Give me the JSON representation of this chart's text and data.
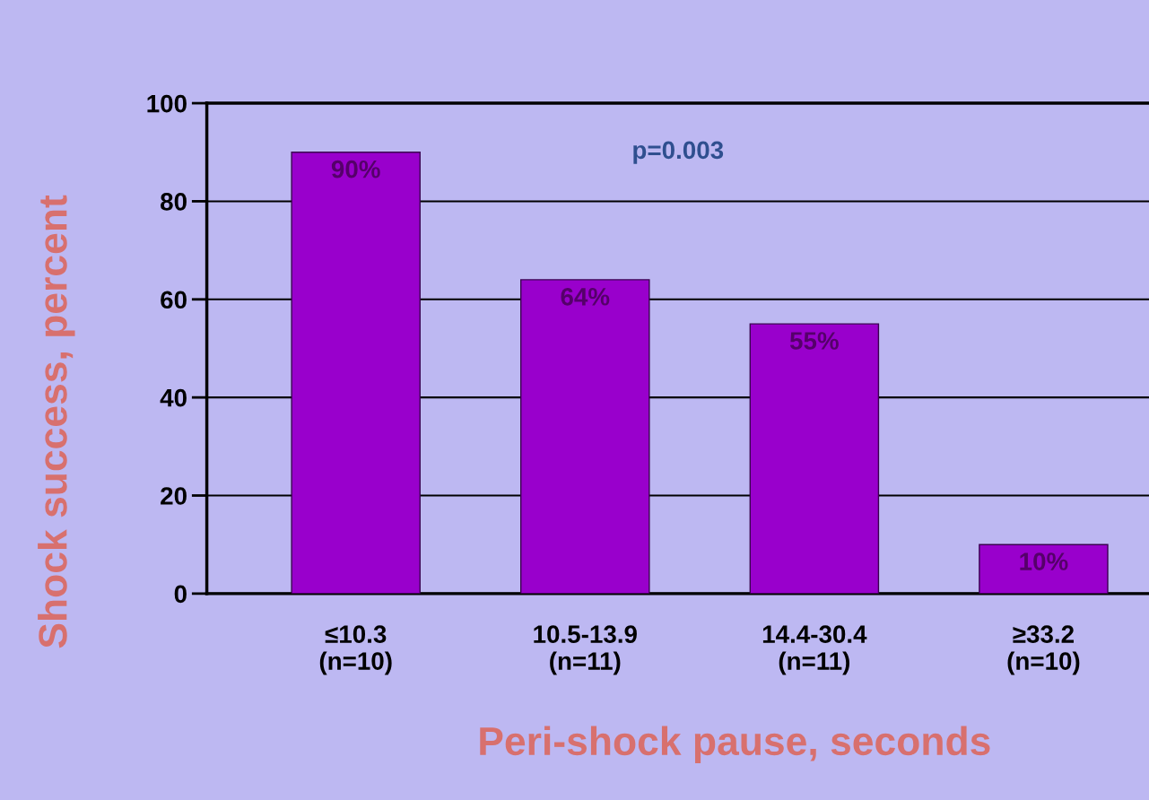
{
  "chart_data": {
    "type": "bar",
    "xlabel": "Peri-shock pause, seconds",
    "ylabel": "Shock success, percent",
    "categories": [
      "≤10.3\n(n=10)",
      "10.5-13.9\n(n=11)",
      "14.4-30.4\n(n=11)",
      "≥33.2\n(n=10)"
    ],
    "values": [
      90,
      64,
      55,
      10
    ],
    "value_labels": [
      "90%",
      "64%",
      "55%",
      "10%"
    ],
    "color": "#9900cc",
    "ylim": [
      0,
      100
    ],
    "yticks": [
      0,
      20,
      40,
      60,
      80,
      100
    ],
    "grid": "y",
    "annotations": [
      "p=0.003"
    ]
  }
}
